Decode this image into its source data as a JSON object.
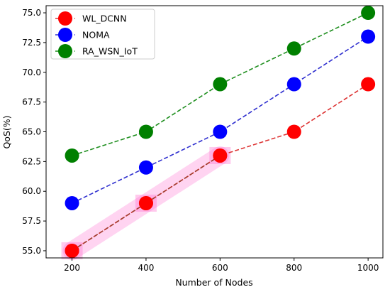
{
  "chart_data": {
    "type": "line",
    "title": "",
    "xlabel": "Number of Nodes",
    "ylabel": "QoS(%)",
    "x": [
      200,
      400,
      600,
      800,
      1000
    ],
    "xticks": [
      "200",
      "400",
      "600",
      "800",
      "1000"
    ],
    "yticks": [
      "55.0",
      "57.5",
      "60.0",
      "62.5",
      "65.0",
      "67.5",
      "70.0",
      "72.5",
      "75.0"
    ],
    "xlim": [
      130,
      1040
    ],
    "ylim": [
      54.4,
      75.6
    ],
    "grid": false,
    "legend_position": "upper-left",
    "series": [
      {
        "name": "WL_DCNN",
        "color": "#ff0000",
        "line_color": "#dd3333",
        "values": [
          55,
          59,
          63,
          65,
          69
        ]
      },
      {
        "name": "NOMA",
        "color": "#0000ff",
        "line_color": "#2f2fcf",
        "values": [
          59,
          62,
          65,
          69,
          73
        ]
      },
      {
        "name": "RA_WSN_IoT",
        "color": "#008000",
        "line_color": "#1f8f1f",
        "values": [
          63,
          65,
          69,
          72,
          75
        ]
      }
    ],
    "highlights": [
      {
        "series": "WL_DCNN",
        "from_x": 200,
        "to_x": 600,
        "color": "#ff66cc",
        "segment_color": "#a04030"
      }
    ]
  }
}
